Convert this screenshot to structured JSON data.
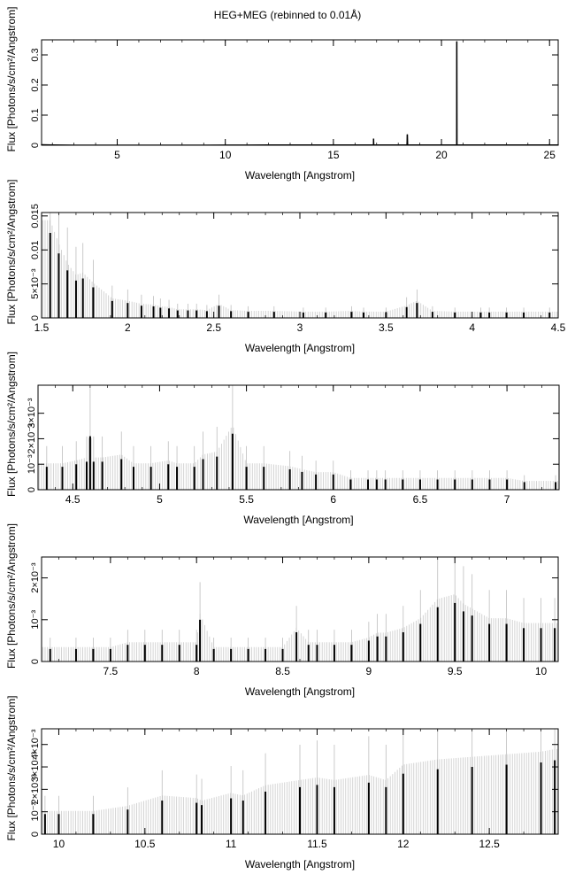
{
  "title": "HEG+MEG (rebinned to 0.01Å)",
  "chart_data": [
    {
      "type": "line",
      "xlabel": "Wavelength [Angstrom]",
      "ylabel": "Flux [Photons/s/cm²/Angstrom]",
      "xlim": [
        1.5,
        25.4
      ],
      "ylim": [
        0,
        0.35
      ],
      "xticks": [
        5,
        10,
        15,
        20,
        25
      ],
      "xtick_labels": [
        "5",
        "10",
        "15",
        "20",
        "25"
      ],
      "yticks": [
        0,
        0.1,
        0.2,
        0.3
      ],
      "ytick_labels": [
        "0",
        "0.1",
        "0.2",
        "0.3"
      ],
      "series": [
        {
          "x": [
            1.5,
            2,
            3,
            4,
            5,
            6,
            7,
            8,
            9,
            10,
            11,
            12,
            13,
            14,
            15,
            16,
            16.85,
            16.86,
            16.87,
            17,
            18,
            18.4,
            18.42,
            18.44,
            19,
            20,
            20.7,
            20.71,
            20.72,
            21,
            22,
            23,
            24,
            25,
            25.4
          ],
          "y": [
            0.002,
            0.001,
            0.0005,
            0.0004,
            0.0004,
            0.0004,
            0.0005,
            0.0005,
            0.0006,
            0.0008,
            0.0008,
            0.001,
            0.001,
            0.0012,
            0.0012,
            0.0013,
            0.0013,
            0.022,
            0.0013,
            0.0013,
            0.0013,
            0.0013,
            0.036,
            0.0013,
            0.0013,
            0.0013,
            0.0013,
            0.345,
            0.0013,
            0.0012,
            0.0012,
            0.0012,
            0.0012,
            0.0012,
            0.0012
          ]
        }
      ]
    },
    {
      "type": "line",
      "xlabel": "Wavelength [Angstrom]",
      "ylabel": "Flux [Photons/s/cm²/Angstrom]",
      "xlim": [
        1.5,
        4.5
      ],
      "ylim": [
        0,
        0.0155
      ],
      "xticks": [
        1.5,
        2,
        2.5,
        3,
        3.5,
        4,
        4.5
      ],
      "xtick_labels": [
        "1.5",
        "2",
        "2.5",
        "3",
        "3.5",
        "4",
        "4.5"
      ],
      "yticks": [
        0,
        0.005,
        0.01,
        0.015
      ],
      "ytick_labels": [
        "0",
        "5×10⁻³",
        "0.01",
        "0.015"
      ],
      "series": [
        {
          "x": [
            1.55,
            1.6,
            1.65,
            1.7,
            1.74,
            1.8,
            1.91,
            2,
            2.08,
            2.15,
            2.19,
            2.24,
            2.29,
            2.35,
            2.4,
            2.46,
            2.53,
            2.6,
            2.7,
            2.85,
            3.02,
            3.15,
            3.3,
            3.37,
            3.5,
            3.62,
            3.68,
            3.77,
            3.9,
            4.05,
            4.1,
            4.2,
            4.3,
            4.45
          ],
          "y": [
            0.0125,
            0.0095,
            0.007,
            0.0055,
            0.0058,
            0.0045,
            0.0025,
            0.0022,
            0.0018,
            0.0017,
            0.0015,
            0.0014,
            0.0011,
            0.0011,
            0.0011,
            0.001,
            0.0018,
            0.001,
            0.0009,
            0.0009,
            0.0008,
            0.0008,
            0.0009,
            0.0008,
            0.0008,
            0.0016,
            0.0022,
            0.0009,
            0.0008,
            0.0008,
            0.0008,
            0.0008,
            0.0008,
            0.0008
          ]
        }
      ]
    },
    {
      "type": "line",
      "xlabel": "Wavelength [Angstrom]",
      "ylabel": "Flux [Photons/s/cm²/Angstrom]",
      "xlim": [
        4.3,
        7.3
      ],
      "ylim": [
        0,
        0.0041
      ],
      "xticks": [
        4.5,
        5,
        5.5,
        6,
        6.5,
        7
      ],
      "xtick_labels": [
        "4.5",
        "5",
        "5.5",
        "6",
        "6.5",
        "7"
      ],
      "yticks": [
        0,
        0.001,
        0.002,
        0.003
      ],
      "ytick_labels": [
        "0",
        "10⁻³",
        "2×10⁻³",
        "3×10⁻³"
      ],
      "series": [
        {
          "x": [
            4.35,
            4.44,
            4.52,
            4.58,
            4.6,
            4.62,
            4.67,
            4.78,
            4.85,
            4.95,
            5.05,
            5.1,
            5.2,
            5.25,
            5.33,
            5.42,
            5.5,
            5.6,
            5.75,
            5.82,
            5.9,
            6.0,
            6.1,
            6.2,
            6.25,
            6.3,
            6.4,
            6.5,
            6.6,
            6.7,
            6.8,
            6.9,
            7.0,
            7.1,
            7.28
          ],
          "y": [
            0.0009,
            0.0009,
            0.001,
            0.0011,
            0.0021,
            0.0011,
            0.0011,
            0.0012,
            0.0009,
            0.0009,
            0.001,
            0.0009,
            0.0009,
            0.0012,
            0.0013,
            0.0022,
            0.0009,
            0.0009,
            0.0008,
            0.0007,
            0.0006,
            0.0006,
            0.0004,
            0.0004,
            0.0004,
            0.0004,
            0.0004,
            0.0004,
            0.0004,
            0.0004,
            0.0004,
            0.0004,
            0.0004,
            0.0003,
            0.0003
          ]
        }
      ]
    },
    {
      "type": "line",
      "xlabel": "Wavelength [Angstrom]",
      "ylabel": "Flux [Photons/s/cm²/Angstrom]",
      "xlim": [
        7.1,
        10.1
      ],
      "ylim": [
        0,
        0.0025
      ],
      "xticks": [
        7.5,
        8,
        8.5,
        9,
        9.5,
        10
      ],
      "xtick_labels": [
        "7.5",
        "8",
        "8.5",
        "9",
        "9.5",
        "10"
      ],
      "yticks": [
        0,
        0.001,
        0.002
      ],
      "ytick_labels": [
        "0",
        "10⁻³",
        "2×10⁻³"
      ],
      "series": [
        {
          "x": [
            7.15,
            7.3,
            7.4,
            7.5,
            7.6,
            7.7,
            7.8,
            7.9,
            8.0,
            8.02,
            8.1,
            8.2,
            8.3,
            8.4,
            8.5,
            8.58,
            8.65,
            8.7,
            8.8,
            8.9,
            9.0,
            9.05,
            9.1,
            9.2,
            9.3,
            9.4,
            9.5,
            9.55,
            9.6,
            9.7,
            9.8,
            9.9,
            10.0,
            10.08
          ],
          "y": [
            0.0003,
            0.0003,
            0.0003,
            0.0003,
            0.0004,
            0.0004,
            0.0004,
            0.0004,
            0.0004,
            0.001,
            0.0003,
            0.0003,
            0.0003,
            0.0003,
            0.0003,
            0.0007,
            0.0004,
            0.0004,
            0.0004,
            0.0004,
            0.0005,
            0.0006,
            0.0006,
            0.0007,
            0.0009,
            0.0013,
            0.0014,
            0.0012,
            0.0011,
            0.0009,
            0.0009,
            0.0008,
            0.0008,
            0.0008
          ]
        }
      ]
    },
    {
      "type": "line",
      "xlabel": "Wavelength [Angstrom]",
      "ylabel": "Flux [Photons/s/cm²/Angstrom]",
      "xlim": [
        9.9,
        12.9
      ],
      "ylim": [
        0,
        0.0047
      ],
      "xticks": [
        10,
        10.5,
        11,
        11.5,
        12,
        12.5
      ],
      "xtick_labels": [
        "10",
        "10.5",
        "11",
        "11.5",
        "12",
        "12.5"
      ],
      "yticks": [
        0,
        0.001,
        0.002,
        0.003,
        0.004
      ],
      "ytick_labels": [
        "0",
        "10⁻³",
        "2×10⁻³",
        "3×10⁻³",
        "4×10⁻³"
      ],
      "series": [
        {
          "x": [
            9.92,
            10.0,
            10.2,
            10.4,
            10.6,
            10.8,
            10.83,
            11.0,
            11.07,
            11.2,
            11.4,
            11.5,
            11.6,
            11.8,
            11.9,
            12.0,
            12.2,
            12.4,
            12.6,
            12.8,
            12.88
          ],
          "y": [
            0.0009,
            0.0009,
            0.0009,
            0.0011,
            0.0015,
            0.0014,
            0.0013,
            0.0016,
            0.0015,
            0.0019,
            0.0021,
            0.0022,
            0.0021,
            0.0023,
            0.0021,
            0.0027,
            0.0029,
            0.003,
            0.0031,
            0.0032,
            0.0033
          ]
        }
      ]
    }
  ]
}
